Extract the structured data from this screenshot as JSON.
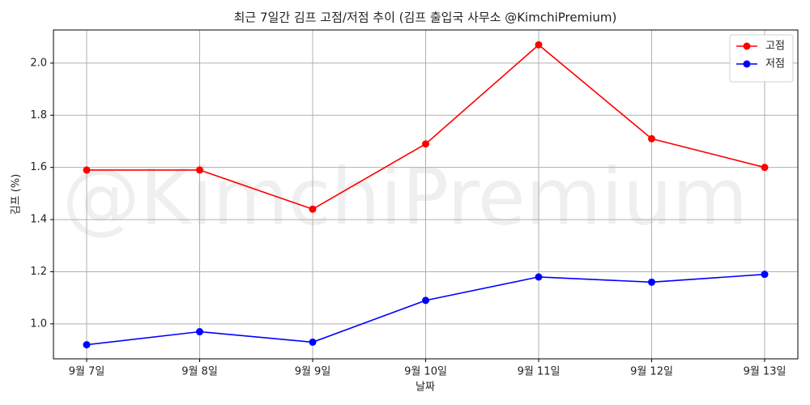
{
  "chart_data": {
    "type": "line",
    "title": "최근 7일간 김프 고점/저점 추이 (김프 출입국 사무소 @KimchiPremium)",
    "watermark": "@KimchiPremium",
    "x_label": "날짜",
    "y_label": "김프 (%)",
    "categories": [
      "9월 7일",
      "9월 8일",
      "9월 9일",
      "9월 10일",
      "9월 11일",
      "9월 12일",
      "9월 13일"
    ],
    "series": [
      {
        "name": "고점",
        "color": "#ff0000",
        "values": [
          1.59,
          1.59,
          1.44,
          1.69,
          2.07,
          1.71,
          1.6
        ]
      },
      {
        "name": "저점",
        "color": "#0000ff",
        "values": [
          0.92,
          0.97,
          0.93,
          1.09,
          1.18,
          1.16,
          1.19
        ]
      }
    ],
    "ylim": [
      0.866,
      2.127
    ],
    "yticks": [
      {
        "value": 1.0,
        "label": "1.0"
      },
      1.2,
      1.4,
      1.6,
      1.8,
      {
        "value": 2.0,
        "label": "2.0"
      }
    ],
    "grid": true,
    "legend": "upper right"
  }
}
